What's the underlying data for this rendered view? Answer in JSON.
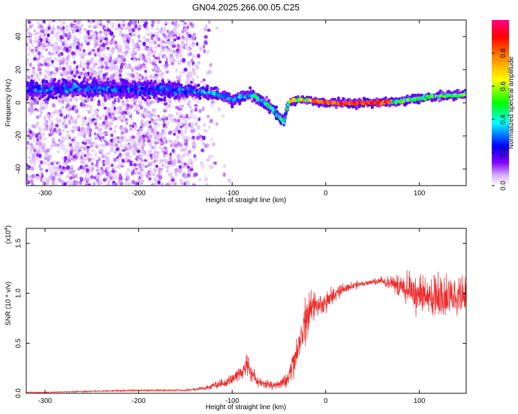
{
  "chart_data": [
    {
      "type": "heatmap",
      "title": "GN04.2025.266.00.05.C25",
      "xlabel": "Height of straight line (km)",
      "ylabel": "Frequency (Hz)",
      "xlim": [
        -320,
        150
      ],
      "ylim": [
        -50,
        50
      ],
      "xticks": [
        -300,
        -200,
        -100,
        0,
        100
      ],
      "xtick_labels": [
        "-300",
        "-200",
        "-100",
        "0",
        "100"
      ],
      "yticks": [
        -40,
        -20,
        0,
        20,
        40
      ],
      "ytick_labels": [
        "-40",
        "-20",
        "0",
        "20",
        "40"
      ],
      "colorbar": {
        "label": "Normalized spectral amplitude",
        "range": [
          0,
          1
        ],
        "ticks": [
          0.0,
          0.2,
          0.4,
          0.6,
          0.8
        ],
        "tick_labels": [
          "0.0",
          "0.2",
          "0.4",
          "0.6",
          "0.8"
        ],
        "colormap": [
          "#ffffff",
          "#7f00ff",
          "#0000ff",
          "#00ffff",
          "#00ff00",
          "#ffff00",
          "#ff8000",
          "#ff0000",
          "#ff0080"
        ]
      },
      "ridge_x": [
        -300,
        -250,
        -200,
        -150,
        -120,
        -100,
        -80,
        -60,
        -45,
        -40,
        -30,
        -10,
        0,
        20,
        50,
        80,
        100,
        120,
        150
      ],
      "ridge_freq": [
        8,
        9,
        8,
        7,
        6,
        2,
        5,
        -2,
        -12,
        0,
        2,
        1,
        0,
        0,
        0,
        1,
        3,
        4,
        5
      ]
    },
    {
      "type": "line",
      "xlabel": "Height of straight line (km)",
      "ylabel": "SNR (10 * v/v)",
      "y_scale_label": "(x10",
      "y_scale_exp": "4",
      "y_scale_close": ")",
      "xlim": [
        -320,
        150
      ],
      "ylim": [
        0,
        1.65
      ],
      "xticks": [
        -300,
        -200,
        -100,
        0,
        100
      ],
      "xtick_labels": [
        "-300",
        "-200",
        "-100",
        "0",
        "100"
      ],
      "yticks": [
        0.0,
        0.5,
        1.0,
        1.5
      ],
      "ytick_labels": [
        "0.0",
        "0.5",
        "1.0",
        "1.5"
      ],
      "series": [
        {
          "name": "SNR",
          "color": "#ee2b2b",
          "x": [
            -320,
            -300,
            -250,
            -200,
            -150,
            -130,
            -110,
            -100,
            -90,
            -85,
            -80,
            -75,
            -70,
            -60,
            -50,
            -40,
            -35,
            -30,
            -25,
            -20,
            -15,
            -10,
            -5,
            0,
            10,
            20,
            30,
            40,
            50,
            60,
            70,
            80,
            90,
            100,
            110,
            120,
            130,
            140,
            150
          ],
          "y": [
            0.01,
            0.01,
            0.02,
            0.03,
            0.03,
            0.05,
            0.1,
            0.15,
            0.2,
            0.3,
            0.22,
            0.15,
            0.1,
            0.08,
            0.08,
            0.15,
            0.3,
            0.4,
            0.6,
            0.75,
            0.85,
            0.9,
            0.88,
            0.9,
            1.0,
            1.05,
            1.08,
            1.1,
            1.12,
            1.12,
            1.1,
            1.08,
            1.05,
            1.0,
            0.98,
            0.95,
            0.95,
            0.95,
            1.0
          ],
          "noise": [
            0.003,
            0.003,
            0.006,
            0.008,
            0.008,
            0.015,
            0.04,
            0.05,
            0.06,
            0.1,
            0.07,
            0.05,
            0.04,
            0.035,
            0.04,
            0.08,
            0.12,
            0.14,
            0.18,
            0.2,
            0.18,
            0.12,
            0.12,
            0.1,
            0.08,
            0.05,
            0.04,
            0.03,
            0.03,
            0.04,
            0.07,
            0.1,
            0.15,
            0.2,
            0.22,
            0.22,
            0.2,
            0.2,
            0.2
          ]
        }
      ]
    }
  ]
}
